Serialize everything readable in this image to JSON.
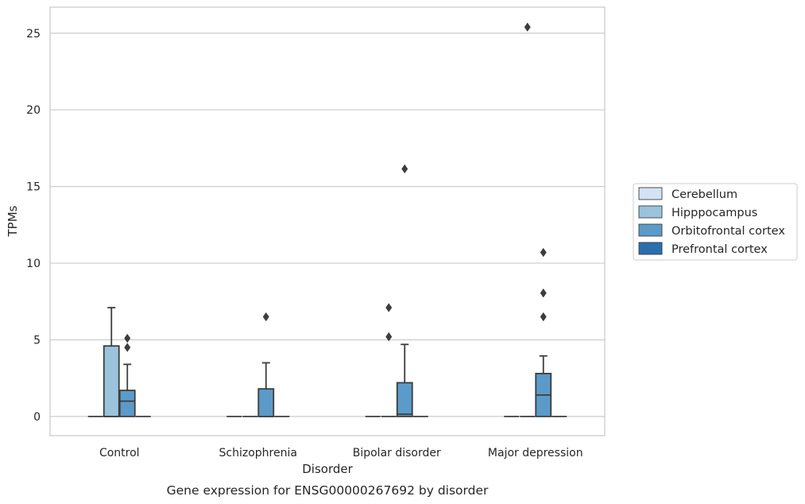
{
  "chart_data": {
    "type": "box",
    "title": "",
    "caption": "Gene expression for ENSG00000267692 by disorder",
    "xlabel": "Disorder",
    "ylabel": "TPMs",
    "ylim": [
      -1.25,
      26.7
    ],
    "yticks": [
      0,
      5,
      10,
      15,
      20,
      25
    ],
    "grid": "horizontal",
    "legend_position": "right",
    "categories": [
      "Control",
      "Schizophrenia",
      "Bipolar disorder",
      "Major depression"
    ],
    "series": [
      {
        "name": "Cerebellum",
        "color": "#d2e3f3",
        "boxes": [
          {
            "q1": 0,
            "median": 0,
            "q3": 0,
            "whisker_low": 0,
            "whisker_high": 0,
            "outliers": []
          },
          {
            "q1": 0,
            "median": 0,
            "q3": 0,
            "whisker_low": 0,
            "whisker_high": 0,
            "outliers": []
          },
          {
            "q1": 0,
            "median": 0,
            "q3": 0,
            "whisker_low": 0,
            "whisker_high": 0,
            "outliers": []
          },
          {
            "q1": 0,
            "median": 0,
            "q3": 0,
            "whisker_low": 0,
            "whisker_high": 0,
            "outliers": []
          }
        ]
      },
      {
        "name": "Hipppocampus",
        "color": "#9ac3dc",
        "boxes": [
          {
            "q1": 0,
            "median": 0,
            "q3": 4.6,
            "whisker_low": 0,
            "whisker_high": 7.1,
            "outliers": []
          },
          {
            "q1": 0,
            "median": 0,
            "q3": 0,
            "whisker_low": 0,
            "whisker_high": 0,
            "outliers": []
          },
          {
            "q1": 0,
            "median": 0,
            "q3": 0,
            "whisker_low": 0,
            "whisker_high": 0,
            "outliers": [
              7.1,
              5.2
            ]
          },
          {
            "q1": 0,
            "median": 0,
            "q3": 0,
            "whisker_low": 0,
            "whisker_high": 0,
            "outliers": [
              25.4
            ]
          }
        ]
      },
      {
        "name": "Orbitofrontal cortex",
        "color": "#5b9bc9",
        "boxes": [
          {
            "q1": 0,
            "median": 1.0,
            "q3": 1.7,
            "whisker_low": 0,
            "whisker_high": 3.4,
            "outliers": [
              5.1,
              4.5
            ]
          },
          {
            "q1": 0,
            "median": 0,
            "q3": 1.8,
            "whisker_low": 0,
            "whisker_high": 3.5,
            "outliers": [
              6.5
            ]
          },
          {
            "q1": 0,
            "median": 0.15,
            "q3": 2.2,
            "whisker_low": 0,
            "whisker_high": 4.7,
            "outliers": [
              16.15
            ]
          },
          {
            "q1": 0,
            "median": 1.4,
            "q3": 2.8,
            "whisker_low": 0,
            "whisker_high": 3.95,
            "outliers": [
              10.7,
              6.5,
              8.05
            ]
          }
        ]
      },
      {
        "name": "Prefrontal cortex",
        "color": "#2a6fad",
        "boxes": [
          {
            "q1": 0,
            "median": 0,
            "q3": 0,
            "whisker_low": 0,
            "whisker_high": 0,
            "outliers": []
          },
          {
            "q1": 0,
            "median": 0,
            "q3": 0,
            "whisker_low": 0,
            "whisker_high": 0,
            "outliers": []
          },
          {
            "q1": 0,
            "median": 0,
            "q3": 0,
            "whisker_low": 0,
            "whisker_high": 0,
            "outliers": []
          },
          {
            "q1": 0,
            "median": 0,
            "q3": 0,
            "whisker_low": 0,
            "whisker_high": 0,
            "outliers": []
          }
        ]
      }
    ]
  }
}
